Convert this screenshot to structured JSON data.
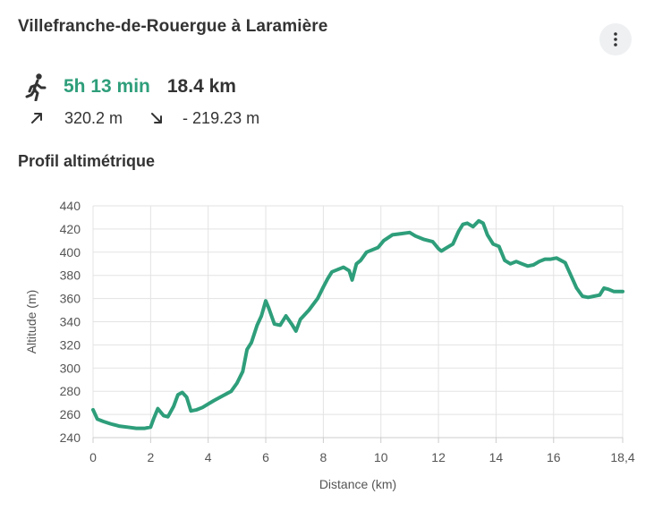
{
  "header": {
    "title": "Villefranche-de-Rouergue à Laramière",
    "menu_icon": "more-vertical-icon"
  },
  "summary": {
    "mode_icon": "walking-person-icon",
    "duration": "5h 13 min",
    "distance": "18.4 km",
    "ascent_icon": "arrow-up-right-icon",
    "ascent": "320.2 m",
    "descent_icon": "arrow-down-right-icon",
    "descent": "- 219.23 m"
  },
  "profile": {
    "section_title": "Profil altimétrique"
  },
  "colors": {
    "accent": "#2e9e7a",
    "text": "#333333",
    "grid": "#e3e3e3"
  },
  "chart_data": {
    "type": "line",
    "xlabel": "Distance (km)",
    "ylabel": "Altitude (m)",
    "xlim": [
      0,
      18.4
    ],
    "ylim": [
      240,
      440
    ],
    "x_ticks": [
      0,
      2,
      4,
      6,
      8,
      10,
      12,
      14,
      16,
      18.4
    ],
    "x_tick_labels": [
      "0",
      "2",
      "4",
      "6",
      "8",
      "10",
      "12",
      "14",
      "16",
      "18,4"
    ],
    "y_ticks": [
      240,
      260,
      280,
      300,
      320,
      340,
      360,
      380,
      400,
      420,
      440
    ],
    "grid": true,
    "series": [
      {
        "x": [
          0,
          0.15,
          0.35,
          0.6,
          0.9,
          1.2,
          1.5,
          1.8,
          2.0,
          2.1,
          2.25,
          2.45,
          2.6,
          2.8,
          2.95,
          3.1,
          3.25,
          3.4,
          3.6,
          3.8,
          4.0,
          4.2,
          4.5,
          4.8,
          5.0,
          5.2,
          5.35,
          5.5,
          5.7,
          5.85,
          6.0,
          6.1,
          6.3,
          6.5,
          6.7,
          6.9,
          7.05,
          7.2,
          7.5,
          7.8,
          8.0,
          8.15,
          8.3,
          8.5,
          8.7,
          8.9,
          9.0,
          9.15,
          9.3,
          9.5,
          9.7,
          9.9,
          10.1,
          10.4,
          10.7,
          11.0,
          11.2,
          11.5,
          11.8,
          12.0,
          12.1,
          12.3,
          12.5,
          12.7,
          12.85,
          13.0,
          13.2,
          13.4,
          13.55,
          13.7,
          13.9,
          14.1,
          14.3,
          14.5,
          14.7,
          14.9,
          15.1,
          15.3,
          15.5,
          15.7,
          15.9,
          16.1,
          16.4,
          16.6,
          16.8,
          17.0,
          17.2,
          17.4,
          17.6,
          17.75,
          17.9,
          18.1,
          18.4
        ],
        "y": [
          264,
          256,
          254,
          252,
          250,
          249,
          248,
          248,
          249,
          256,
          265,
          259,
          258,
          267,
          277,
          279,
          275,
          263,
          264,
          266,
          269,
          272,
          276,
          280,
          287,
          297,
          316,
          322,
          337,
          345,
          358,
          352,
          338,
          337,
          345,
          338,
          332,
          342,
          350,
          360,
          370,
          377,
          383,
          385,
          387,
          384,
          376,
          390,
          393,
          400,
          402,
          404,
          410,
          415,
          416,
          417,
          414,
          411,
          409,
          403,
          401,
          404,
          407,
          418,
          424,
          425,
          422,
          427,
          425,
          415,
          407,
          405,
          393,
          390,
          392,
          390,
          388,
          389,
          392,
          394,
          394,
          395,
          391,
          380,
          369,
          362,
          361,
          362,
          363,
          369,
          368,
          366,
          366
        ]
      }
    ]
  }
}
